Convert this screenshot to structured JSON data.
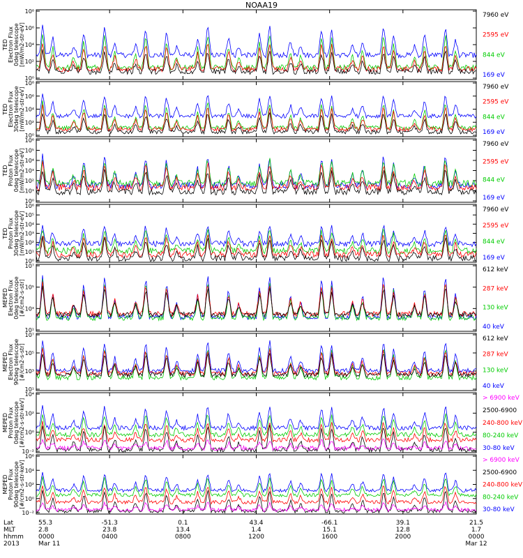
{
  "title": "NOAA19",
  "chart_data": {
    "type": "line",
    "title": "NOAA19",
    "ylog": true,
    "grid": false,
    "legend": "right",
    "colors": {
      "blue": "#0000ff",
      "green": "#00cc00",
      "red": "#ff0000",
      "black": "#000000",
      "magenta": "#ff00ff"
    },
    "x_axis": {
      "rows": [
        {
          "label": "Lat",
          "values": [
            "55.3",
            "-51.3",
            "0.1",
            "43.4",
            "-66.1",
            "39.1",
            "21.5"
          ]
        },
        {
          "label": "MLT",
          "values": [
            "2.8",
            "23.8",
            "13.4",
            "1.4",
            "15.1",
            "12.8",
            "1.7"
          ]
        },
        {
          "label": "hhmm",
          "values": [
            "0000",
            "0400",
            "0800",
            "1200",
            "1600",
            "2000",
            "0000"
          ]
        },
        {
          "label": "2013",
          "values": [
            "Mar 11",
            "",
            "",
            "",
            "",
            "",
            "Mar 12"
          ]
        }
      ],
      "hours": [
        0,
        4,
        8,
        12,
        16,
        20,
        24
      ]
    },
    "panels": [
      {
        "ylabel": [
          "TED",
          "Electron Flux",
          "0deg telescope",
          "[mW/m2-str-eV]"
        ],
        "yticks": [
          "10⁰",
          "10²",
          "10⁴",
          "10⁶",
          "10⁸"
        ],
        "ylim_exp": [
          0,
          8
        ],
        "series": [
          {
            "name": "7960 eV",
            "color": "#000000",
            "base": 0.9,
            "peak": 3.4
          },
          {
            "name": "2595 eV",
            "color": "#ff0000",
            "base": 1.2,
            "peak": 4.4
          },
          {
            "name": "844 eV",
            "color": "#00cc00",
            "base": 1.4,
            "peak": 5.4
          },
          {
            "name": "169 eV",
            "color": "#0000ff",
            "base": 2.8,
            "peak": 6.3
          }
        ]
      },
      {
        "ylabel": [
          "TED",
          "Electron Flux",
          "30deg telescope",
          "[mW/m2-str-eV]"
        ],
        "yticks": [
          "10⁰",
          "10²",
          "10⁴",
          "10⁶",
          "10⁸"
        ],
        "ylim_exp": [
          0,
          8
        ],
        "series": [
          {
            "name": "7960 eV",
            "color": "#000000",
            "base": 0.7,
            "peak": 3.6
          },
          {
            "name": "2595 eV",
            "color": "#ff0000",
            "base": 1.1,
            "peak": 4.6
          },
          {
            "name": "844 eV",
            "color": "#00cc00",
            "base": 1.3,
            "peak": 5.2
          },
          {
            "name": "169 eV",
            "color": "#0000ff",
            "base": 3.0,
            "peak": 6.4
          }
        ]
      },
      {
        "ylabel": [
          "TED",
          "Proton Flux",
          "0deg telescope",
          "[mW/m2-str-eV]"
        ],
        "yticks": [
          "10⁰",
          "10¹",
          "10²",
          "10³",
          "10⁴",
          "10⁵",
          "10⁶"
        ],
        "ylim_exp": [
          0,
          6
        ],
        "series": [
          {
            "name": "7960 eV",
            "color": "#000000",
            "base": 1.0,
            "peak": 3.2
          },
          {
            "name": "2595 eV",
            "color": "#ff0000",
            "base": 1.4,
            "peak": 3.8
          },
          {
            "name": "844 eV",
            "color": "#00cc00",
            "base": 1.8,
            "peak": 4.2
          },
          {
            "name": "169 eV",
            "color": "#0000ff",
            "base": 1.6,
            "peak": 4.6
          }
        ]
      },
      {
        "ylabel": [
          "TED",
          "Proton Flux",
          "30deg telescope",
          "[mW/m2-str-eV]"
        ],
        "yticks": [
          "10⁰",
          "10¹",
          "10²",
          "10³",
          "10⁴",
          "10⁵",
          "10⁶"
        ],
        "ylim_exp": [
          0,
          6
        ],
        "series": [
          {
            "name": "7960 eV",
            "color": "#000000",
            "base": 0.4,
            "peak": 2.6
          },
          {
            "name": "2595 eV",
            "color": "#ff0000",
            "base": 0.8,
            "peak": 3.0
          },
          {
            "name": "844 eV",
            "color": "#00cc00",
            "base": 1.2,
            "peak": 3.6
          },
          {
            "name": "169 eV",
            "color": "#0000ff",
            "base": 1.9,
            "peak": 4.0
          }
        ]
      },
      {
        "ylabel": [
          "MEPED",
          "Electron Flux",
          "0deg telescope",
          "[#/cm2-s-str]"
        ],
        "yticks": [
          "10¹",
          "10³",
          "10⁵",
          "10⁷"
        ],
        "ylim_exp": [
          0,
          8
        ],
        "series": [
          {
            "name": "612 keV",
            "color": "#000000",
            "base": 2.0,
            "peak": 5.4
          },
          {
            "name": "287 keV",
            "color": "#ff0000",
            "base": 2.1,
            "peak": 6.0
          },
          {
            "name": "130 keV",
            "color": "#00cc00",
            "base": 1.6,
            "peak": 6.2
          },
          {
            "name": "40 keV",
            "color": "#0000ff",
            "base": 1.7,
            "peak": 7.0
          }
        ]
      },
      {
        "ylabel": [
          "MEPED",
          "Electron Flux",
          "90deg telescope",
          "[#/cm2-s-str]"
        ],
        "yticks": [
          "10¹",
          "10³",
          "10⁵",
          "10⁷"
        ],
        "ylim_exp": [
          0,
          8
        ],
        "series": [
          {
            "name": "612 keV",
            "color": "#000000",
            "base": 2.2,
            "peak": 5.4
          },
          {
            "name": "287 keV",
            "color": "#ff0000",
            "base": 2.4,
            "peak": 6.0
          },
          {
            "name": "130 keV",
            "color": "#00cc00",
            "base": 1.8,
            "peak": 6.4
          },
          {
            "name": "40 keV",
            "color": "#0000ff",
            "base": 2.8,
            "peak": 7.2
          }
        ]
      },
      {
        "ylabel": [
          "MEPED",
          "Proton Flux",
          "0deg telescope",
          "[#/cm2-s-str-keV]"
        ],
        "yticks": [
          "10⁻²",
          "10⁰",
          "10²",
          "10⁴"
        ],
        "ylim_exp": [
          -3,
          5
        ],
        "series": [
          {
            "name": "> 6900 keV",
            "color": "#ff00ff",
            "base": -2.4,
            "peak": -1.2
          },
          {
            "name": "2500-6900",
            "color": "#000000",
            "base": -2.6,
            "peak": 0.8
          },
          {
            "name": "240-800 keV",
            "color": "#ff0000",
            "base": -1.3,
            "peak": 1.2
          },
          {
            "name": "80-240 keV",
            "color": "#00cc00",
            "base": -0.6,
            "peak": 2.4
          },
          {
            "name": "30-80 keV",
            "color": "#0000ff",
            "base": 0.3,
            "peak": 3.4
          }
        ]
      },
      {
        "ylabel": [
          "MEPED",
          "Proton Flux",
          "90deg telescope",
          "[#/cm2-s-str-keV]"
        ],
        "yticks": [
          "10⁻²",
          "10⁰",
          "10²",
          "10⁴",
          "10⁶"
        ],
        "ylim_exp": [
          -3,
          7
        ],
        "series": [
          {
            "name": "> 6900 keV",
            "color": "#ff00ff",
            "base": -2.3,
            "peak": -1.0
          },
          {
            "name": "2500-6900",
            "color": "#000000",
            "base": -2.5,
            "peak": 1.2
          },
          {
            "name": "240-800 keV",
            "color": "#ff0000",
            "base": -1.0,
            "peak": 2.0
          },
          {
            "name": "80-240 keV",
            "color": "#00cc00",
            "base": 0.2,
            "peak": 3.4
          },
          {
            "name": "30-80 keV",
            "color": "#0000ff",
            "base": 1.0,
            "peak": 4.2
          }
        ]
      }
    ]
  }
}
